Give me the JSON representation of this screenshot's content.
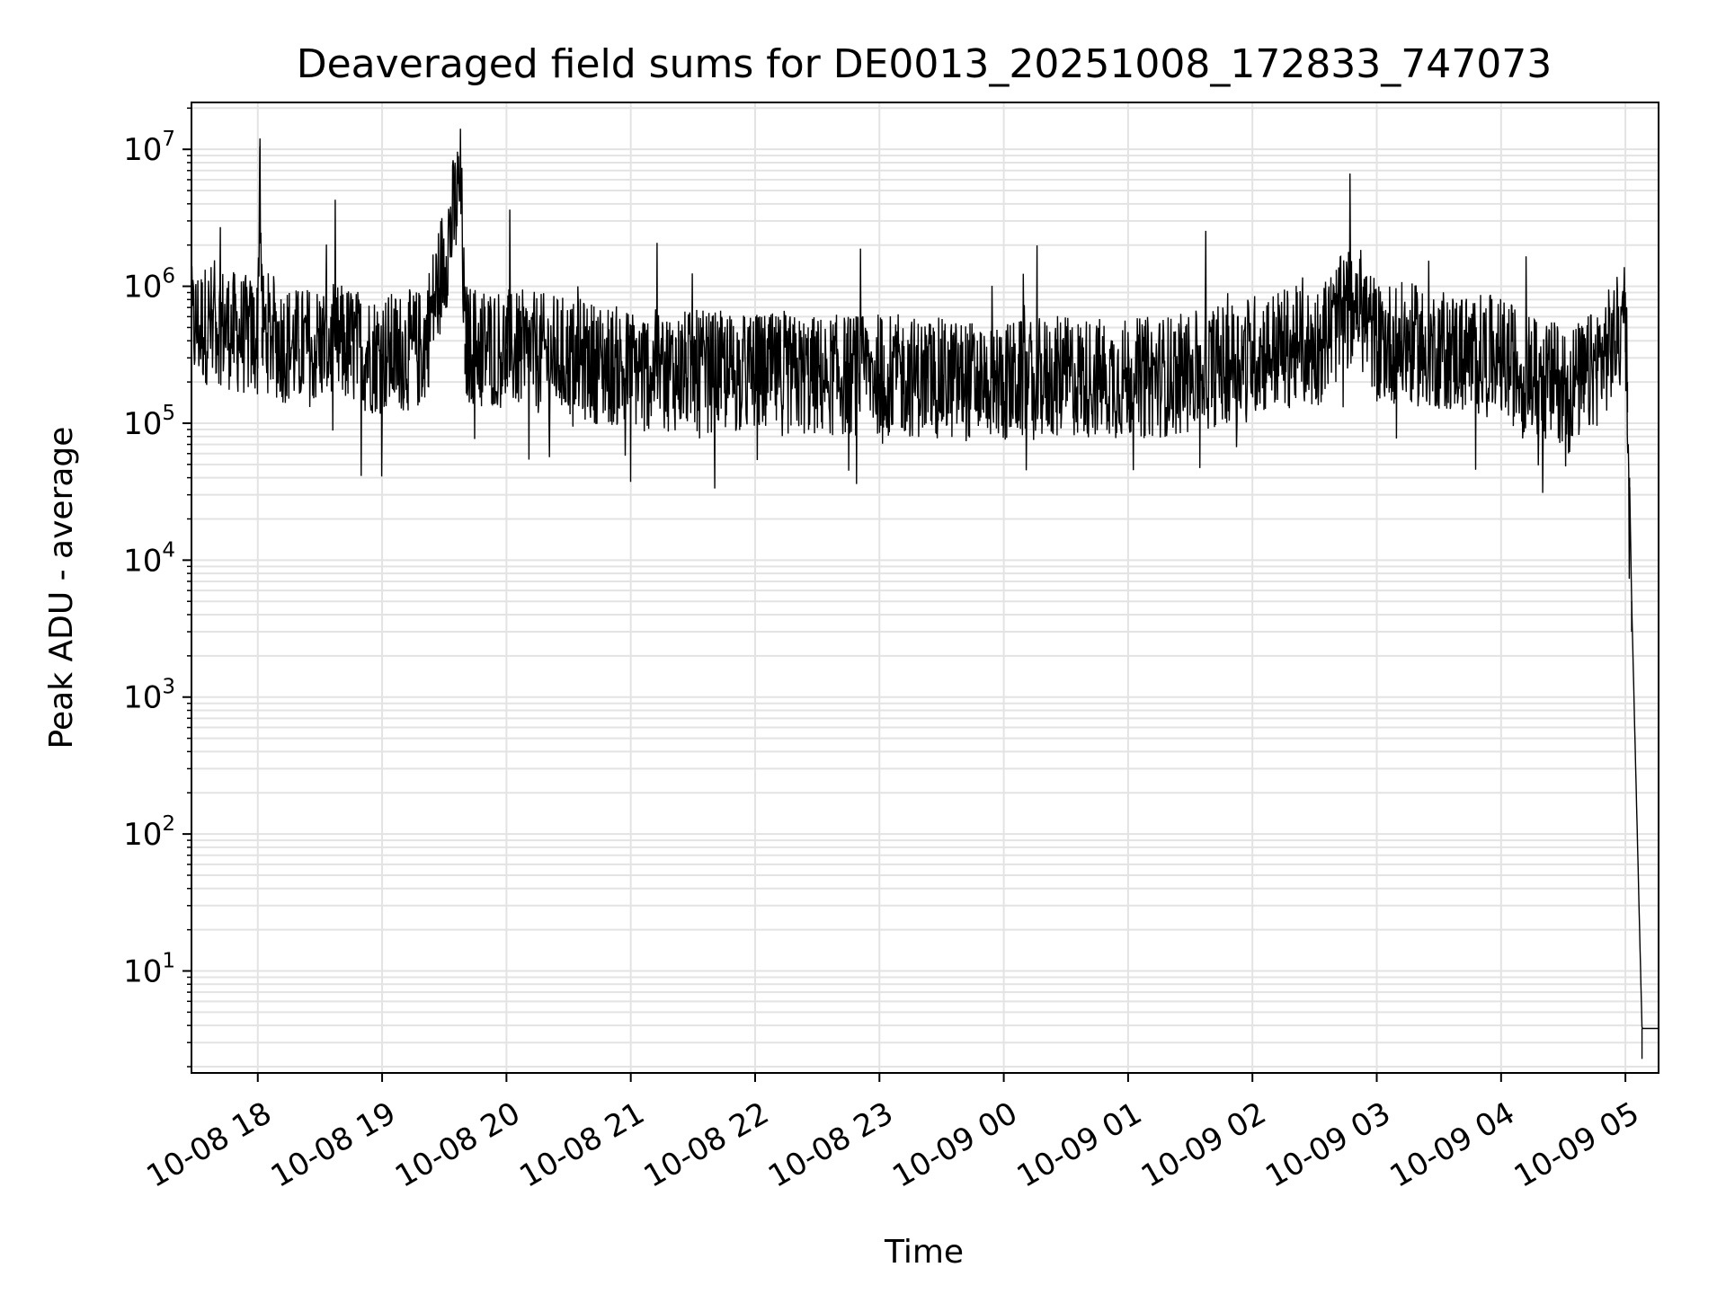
{
  "chart_data": {
    "type": "line",
    "title": "Deaveraged field sums for DE0013_20251008_172833_747073",
    "xlabel": "Time",
    "ylabel": "Peak ADU - average",
    "yscale": "log",
    "grid": true,
    "line_color": "#000000",
    "grid_color": "#e3e3e3",
    "xlim": [
      "2025-10-08 17:28",
      "2025-10-09 05:16"
    ],
    "ylim": [
      1.8,
      22000000
    ],
    "x_ticks": [
      {
        "value": "2025-10-08 18:00",
        "label": "10-08 18"
      },
      {
        "value": "2025-10-08 19:00",
        "label": "10-08 19"
      },
      {
        "value": "2025-10-08 20:00",
        "label": "10-08 20"
      },
      {
        "value": "2025-10-08 21:00",
        "label": "10-08 21"
      },
      {
        "value": "2025-10-08 22:00",
        "label": "10-08 22"
      },
      {
        "value": "2025-10-08 23:00",
        "label": "10-08 23"
      },
      {
        "value": "2025-10-09 00:00",
        "label": "10-09 00"
      },
      {
        "value": "2025-10-09 01:00",
        "label": "10-09 01"
      },
      {
        "value": "2025-10-09 02:00",
        "label": "10-09 02"
      },
      {
        "value": "2025-10-09 03:00",
        "label": "10-09 03"
      },
      {
        "value": "2025-10-09 04:00",
        "label": "10-09 04"
      },
      {
        "value": "2025-10-09 05:00",
        "label": "10-09 05"
      }
    ],
    "y_ticks": [
      {
        "value": 10,
        "base": "10",
        "exp": "1"
      },
      {
        "value": 100,
        "base": "10",
        "exp": "2"
      },
      {
        "value": 1000,
        "base": "10",
        "exp": "3"
      },
      {
        "value": 10000,
        "base": "10",
        "exp": "4"
      },
      {
        "value": 100000,
        "base": "10",
        "exp": "5"
      },
      {
        "value": 1000000,
        "base": "10",
        "exp": "6"
      },
      {
        "value": 10000000,
        "base": "10",
        "exp": "7"
      }
    ],
    "series_description": "noisy time series of roughly 3000 samples; values mostly 1e5 to 1e6, dropping to about 3.8 after 05:02",
    "series": [
      {
        "x": [
          "2025-10-08 17:28",
          "2025-10-08 17:40",
          "2025-10-08 17:50",
          "2025-10-08 18:00",
          "2025-10-08 18:01",
          "2025-10-08 18:02",
          "2025-10-08 18:10",
          "2025-10-08 18:20",
          "2025-10-08 18:30",
          "2025-10-08 18:45",
          "2025-10-08 18:50",
          "2025-10-08 19:00",
          "2025-10-08 19:20",
          "2025-10-08 19:38",
          "2025-10-08 19:40",
          "2025-10-08 20:00",
          "2025-10-08 20:30",
          "2025-10-08 21:00",
          "2025-10-08 21:30",
          "2025-10-08 22:00",
          "2025-10-08 22:30",
          "2025-10-08 23:00",
          "2025-10-08 23:30",
          "2025-10-09 00:00",
          "2025-10-09 00:30",
          "2025-10-09 01:00",
          "2025-10-09 01:30",
          "2025-10-09 02:00",
          "2025-10-09 02:20",
          "2025-10-09 02:30",
          "2025-10-09 02:50",
          "2025-10-09 03:00",
          "2025-10-09 03:20",
          "2025-10-09 03:40",
          "2025-10-09 04:00",
          "2025-10-09 04:20",
          "2025-10-09 04:40",
          "2025-10-09 04:55",
          "2025-10-09 05:00",
          "2025-10-09 05:01",
          "2025-10-09 05:02",
          "2025-10-09 05:03",
          "2025-10-09 05:08",
          "2025-10-09 05:16"
        ],
        "values": [
          500000,
          550000,
          450000,
          420000,
          10500000,
          500000,
          400000,
          350000,
          380000,
          370000,
          330000,
          320000,
          350000,
          5600000,
          380000,
          350000,
          300000,
          250000,
          240000,
          230000,
          220000,
          230000,
          210000,
          200000,
          220000,
          210000,
          230000,
          320000,
          360000,
          350000,
          800000,
          400000,
          370000,
          330000,
          300000,
          200000,
          200000,
          400000,
          550000,
          200000,
          40000,
          5000,
          3.8,
          3.8
        ]
      }
    ]
  }
}
